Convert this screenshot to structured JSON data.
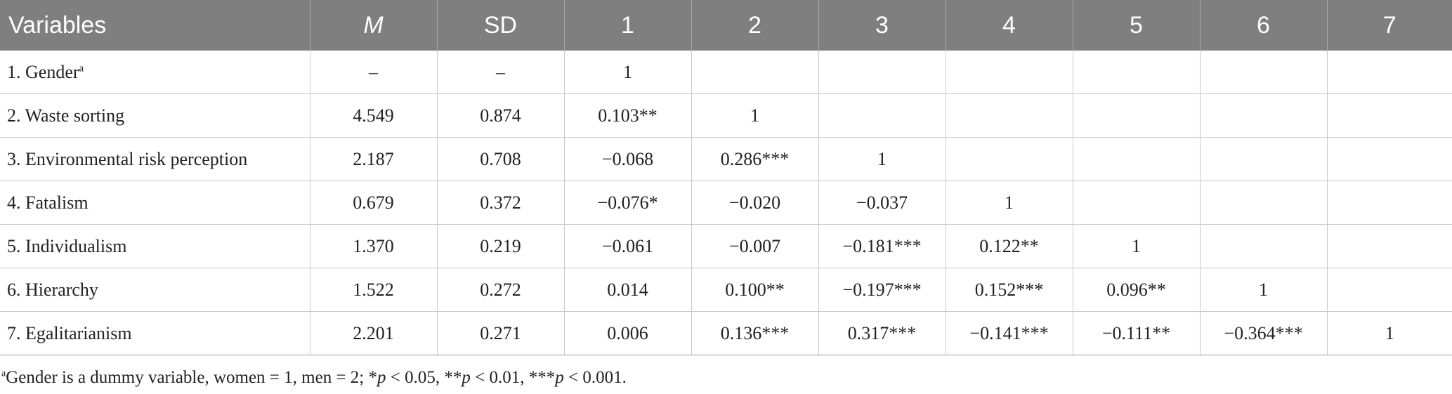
{
  "header": {
    "variables": "Variables",
    "m": "M",
    "sd": "SD",
    "c1": "1",
    "c2": "2",
    "c3": "3",
    "c4": "4",
    "c5": "5",
    "c6": "6",
    "c7": "7"
  },
  "rows": [
    {
      "label": "1. Gender",
      "mark": "a",
      "m": "–",
      "sd": "–",
      "c1": "1",
      "c2": "",
      "c3": "",
      "c4": "",
      "c5": "",
      "c6": "",
      "c7": ""
    },
    {
      "label": "2. Waste sorting",
      "mark": "",
      "m": "4.549",
      "sd": "0.874",
      "c1": "0.103**",
      "c2": "1",
      "c3": "",
      "c4": "",
      "c5": "",
      "c6": "",
      "c7": ""
    },
    {
      "label": "3. Environmental risk perception",
      "mark": "",
      "m": "2.187",
      "sd": "0.708",
      "c1": "−0.068",
      "c2": "0.286***",
      "c3": "1",
      "c4": "",
      "c5": "",
      "c6": "",
      "c7": ""
    },
    {
      "label": "4. Fatalism",
      "mark": "",
      "m": "0.679",
      "sd": "0.372",
      "c1": "−0.076*",
      "c2": "−0.020",
      "c3": "−0.037",
      "c4": "1",
      "c5": "",
      "c6": "",
      "c7": ""
    },
    {
      "label": "5. Individualism",
      "mark": "",
      "m": "1.370",
      "sd": "0.219",
      "c1": "−0.061",
      "c2": "−0.007",
      "c3": "−0.181***",
      "c4": "0.122**",
      "c5": "1",
      "c6": "",
      "c7": ""
    },
    {
      "label": "6. Hierarchy",
      "mark": "",
      "m": "1.522",
      "sd": "0.272",
      "c1": "0.014",
      "c2": "0.100**",
      "c3": "−0.197***",
      "c4": "0.152***",
      "c5": "0.096**",
      "c6": "1",
      "c7": ""
    },
    {
      "label": "7. Egalitarianism",
      "mark": "",
      "m": "2.201",
      "sd": "0.271",
      "c1": "0.006",
      "c2": "0.136***",
      "c3": "0.317***",
      "c4": "−0.141***",
      "c5": "−0.111**",
      "c6": "−0.364***",
      "c7": "1"
    }
  ],
  "footnote": {
    "mark": "a",
    "text1": "Gender is a dummy variable, women = 1, men = 2; *",
    "p1": "p",
    "text2": " < 0.05, **",
    "p2": "p",
    "text3": " < 0.01, ***",
    "p3": "p",
    "text4": " < 0.001."
  }
}
